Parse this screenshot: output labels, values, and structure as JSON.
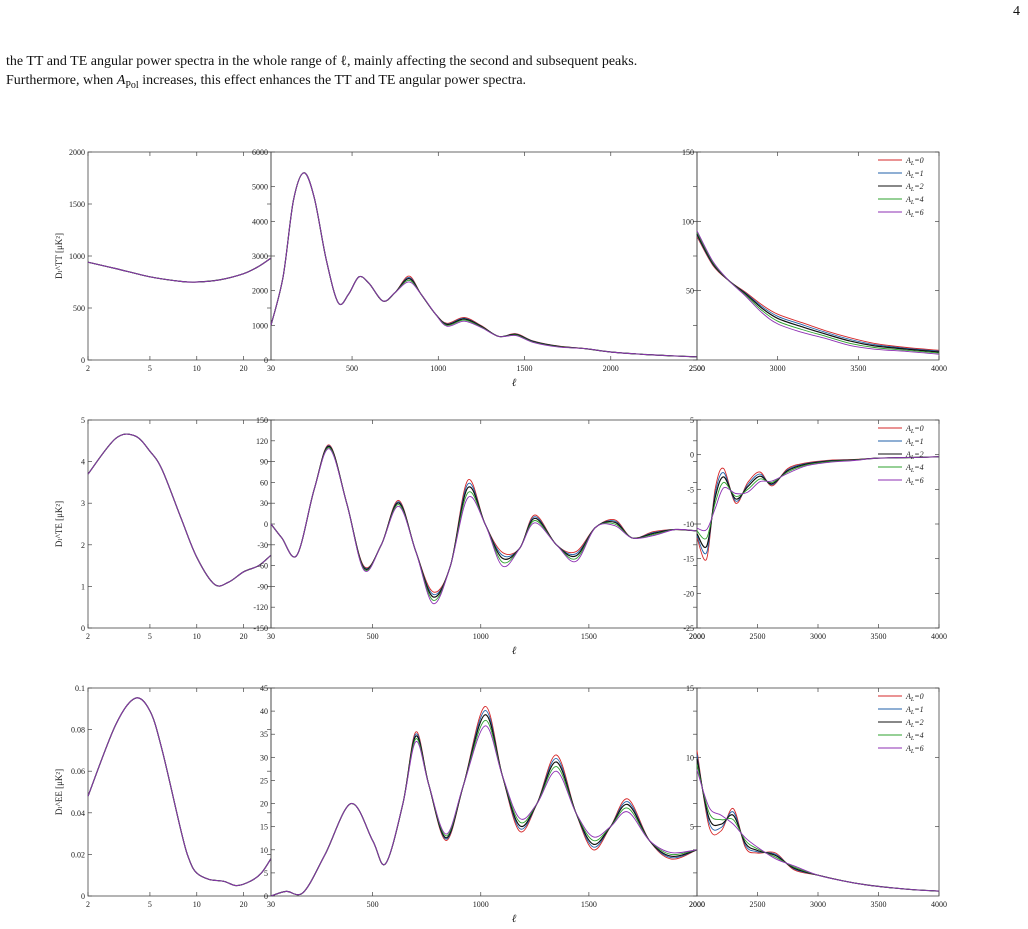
{
  "page": {
    "number": "4",
    "paragraph": {
      "line1": "the TT and TE angular power spectra in the whole range of ℓ, mainly affecting the second and subsequent peaks.",
      "line2_pre": "Furthermore, when ",
      "line2_sym": "A",
      "line2_sub": "Pol",
      "line2_post": " increases, this effect enhances the TT and TE angular power spectra."
    }
  },
  "figure": {
    "x_label": "ℓ",
    "legend": [
      "A_L=0",
      "A_L=1",
      "A_L=2",
      "A_L=4",
      "A_L=6"
    ],
    "colors": [
      "#d62728",
      "#1f5fa8",
      "#111111",
      "#2ca02c",
      "#8e2fb3"
    ]
  },
  "chart_data": [
    {
      "type": "line",
      "name": "TT",
      "ylabel": "Dₗ^TT [μK²]",
      "panels": [
        {
          "scale": "log",
          "xlim": [
            2,
            30
          ],
          "ylim": [
            0,
            2000
          ],
          "xticks": [
            2,
            5,
            10,
            20,
            30
          ],
          "yticks": [
            0,
            500,
            1000,
            1500,
            2000
          ],
          "base": [
            [
              2,
              940
            ],
            [
              3,
              880
            ],
            [
              5,
              800
            ],
            [
              8,
              755
            ],
            [
              10,
              750
            ],
            [
              14,
              770
            ],
            [
              20,
              830
            ],
            [
              25,
              900
            ],
            [
              30,
              980
            ]
          ],
          "spread": [
            0,
            0,
            0,
            0,
            0,
            0,
            0,
            0,
            0
          ]
        },
        {
          "scale": "linear",
          "xlim": [
            30,
            2500
          ],
          "ylim": [
            0,
            6000
          ],
          "xticks": [
            500,
            1000,
            1500,
            2000,
            2500
          ],
          "yticks": [
            0,
            1000,
            2000,
            3000,
            4000,
            5000,
            6000
          ],
          "base": [
            [
              30,
              1000
            ],
            [
              100,
              2400
            ],
            [
              160,
              4600
            ],
            [
              220,
              5400
            ],
            [
              280,
              4700
            ],
            [
              350,
              2900
            ],
            [
              420,
              1650
            ],
            [
              480,
              1900
            ],
            [
              540,
              2400
            ],
            [
              600,
              2200
            ],
            [
              680,
              1700
            ],
            [
              750,
              1950
            ],
            [
              830,
              2300
            ],
            [
              900,
              1900
            ],
            [
              980,
              1350
            ],
            [
              1050,
              1000
            ],
            [
              1150,
              1150
            ],
            [
              1250,
              950
            ],
            [
              1350,
              680
            ],
            [
              1450,
              720
            ],
            [
              1550,
              520
            ],
            [
              1700,
              380
            ],
            [
              1850,
              330
            ],
            [
              2000,
              230
            ],
            [
              2200,
              160
            ],
            [
              2350,
              120
            ],
            [
              2500,
              90
            ]
          ],
          "spread": [
            0,
            0,
            0,
            0,
            0,
            0,
            0,
            0,
            0,
            0,
            0,
            0,
            120,
            0,
            0,
            60,
            80,
            40,
            0,
            40,
            30,
            20,
            0,
            0,
            0,
            0,
            0
          ]
        },
        {
          "scale": "linear",
          "xlim": [
            2500,
            4000
          ],
          "ylim": [
            0,
            150
          ],
          "xticks": [
            2500,
            3000,
            3500,
            4000
          ],
          "yticks": [
            50,
            100,
            150
          ],
          "base": [
            [
              2500,
              92
            ],
            [
              2600,
              70
            ],
            [
              2700,
              57
            ],
            [
              2800,
              47
            ],
            [
              2900,
              36
            ],
            [
              3000,
              28
            ],
            [
              3150,
              22
            ],
            [
              3300,
              17
            ],
            [
              3450,
              12
            ],
            [
              3600,
              9
            ],
            [
              3800,
              7
            ],
            [
              4000,
              5
            ]
          ],
          "spread": [
            -3,
            -2,
            0,
            2,
            4,
            5,
            5,
            4,
            4,
            3,
            2,
            2
          ]
        }
      ]
    },
    {
      "type": "line",
      "name": "TE",
      "ylabel": "Dₗ^TE [μK²]",
      "panels": [
        {
          "scale": "log",
          "xlim": [
            2,
            30
          ],
          "ylim": [
            0,
            5
          ],
          "xticks": [
            2,
            5,
            10,
            20,
            30
          ],
          "yticks": [
            0,
            1,
            2,
            3,
            4,
            5
          ],
          "base": [
            [
              2,
              3.7
            ],
            [
              3,
              4.55
            ],
            [
              4,
              4.62
            ],
            [
              5,
              4.25
            ],
            [
              6,
              3.8
            ],
            [
              8,
              2.6
            ],
            [
              10,
              1.7
            ],
            [
              13,
              1.05
            ],
            [
              16,
              1.1
            ],
            [
              20,
              1.35
            ],
            [
              25,
              1.5
            ],
            [
              30,
              1.75
            ]
          ],
          "spread": [
            0,
            0,
            0,
            0,
            0,
            0,
            0,
            0,
            0,
            0,
            0,
            0
          ]
        },
        {
          "scale": "linear",
          "xlim": [
            30,
            2000
          ],
          "ylim": [
            -150,
            150
          ],
          "xticks": [
            500,
            1000,
            1500,
            2000
          ],
          "yticks": [
            -150,
            -120,
            -90,
            -60,
            -30,
            0,
            30,
            60,
            90,
            120,
            150
          ],
          "base": [
            [
              30,
              0
            ],
            [
              80,
              -20
            ],
            [
              150,
              -45
            ],
            [
              230,
              50
            ],
            [
              300,
              110
            ],
            [
              380,
              30
            ],
            [
              460,
              -65
            ],
            [
              540,
              -30
            ],
            [
              620,
              28
            ],
            [
              700,
              -40
            ],
            [
              780,
              -110
            ],
            [
              860,
              -60
            ],
            [
              940,
              45
            ],
            [
              1020,
              0
            ],
            [
              1100,
              -55
            ],
            [
              1180,
              -35
            ],
            [
              1250,
              5
            ],
            [
              1350,
              -30
            ],
            [
              1440,
              -50
            ],
            [
              1530,
              -5
            ],
            [
              1620,
              0
            ],
            [
              1700,
              -20
            ],
            [
              1800,
              -15
            ],
            [
              1900,
              -8
            ],
            [
              2000,
              -10
            ]
          ],
          "spread": [
            0,
            0,
            0,
            0,
            4,
            0,
            4,
            0,
            6,
            0,
            12,
            0,
            18,
            0,
            14,
            0,
            8,
            0,
            10,
            0,
            6,
            0,
            4,
            0,
            0
          ]
        },
        {
          "scale": "linear",
          "xlim": [
            2000,
            4000
          ],
          "ylim": [
            -25,
            5
          ],
          "xticks": [
            2000,
            2500,
            3000,
            3500,
            4000
          ],
          "yticks": [
            -25,
            -20,
            -15,
            -10,
            -5,
            0,
            5
          ],
          "base": [
            [
              2000,
              -11
            ],
            [
              2080,
              -12
            ],
            [
              2150,
              -7
            ],
            [
              2220,
              -4
            ],
            [
              2320,
              -6
            ],
            [
              2420,
              -5
            ],
            [
              2520,
              -3.5
            ],
            [
              2620,
              -4
            ],
            [
              2750,
              -2.5
            ],
            [
              2900,
              -1.5
            ],
            [
              3100,
              -1
            ],
            [
              3300,
              -0.8
            ],
            [
              3500,
              -0.5
            ],
            [
              3800,
              -0.4
            ],
            [
              4000,
              -0.3
            ]
          ],
          "spread": [
            -1,
            -3,
            2,
            2,
            -1,
            1,
            1,
            -0.5,
            0.5,
            0.3,
            0.2,
            0.1,
            0,
            0,
            0
          ]
        }
      ]
    },
    {
      "type": "line",
      "name": "EE",
      "ylabel": "Dₗ^EE [μK²]",
      "panels": [
        {
          "scale": "log",
          "xlim": [
            2,
            30
          ],
          "ylim": [
            0,
            0.1
          ],
          "xticks": [
            2,
            5,
            10,
            20,
            30
          ],
          "yticks": [
            0,
            0.02,
            0.04,
            0.06,
            0.08,
            0.1
          ],
          "base": [
            [
              2,
              0.048
            ],
            [
              3,
              0.082
            ],
            [
              4,
              0.095
            ],
            [
              5,
              0.089
            ],
            [
              6,
              0.07
            ],
            [
              8,
              0.03
            ],
            [
              9,
              0.017
            ],
            [
              10,
              0.011
            ],
            [
              12,
              0.008
            ],
            [
              15,
              0.007
            ],
            [
              18,
              0.005
            ],
            [
              22,
              0.007
            ],
            [
              26,
              0.011
            ],
            [
              30,
              0.018
            ]
          ],
          "spread": [
            0,
            0,
            0,
            0,
            0,
            0,
            0,
            0,
            0,
            0,
            0,
            0,
            0,
            0
          ]
        },
        {
          "scale": "linear",
          "xlim": [
            30,
            2000
          ],
          "ylim": [
            0,
            45
          ],
          "xticks": [
            500,
            1000,
            1500,
            2000
          ],
          "yticks": [
            0,
            5,
            10,
            15,
            20,
            25,
            30,
            35,
            40,
            45
          ],
          "base": [
            [
              30,
              0
            ],
            [
              100,
              1
            ],
            [
              180,
              0.8
            ],
            [
              280,
              9
            ],
            [
              400,
              20
            ],
            [
              500,
              12
            ],
            [
              560,
              7
            ],
            [
              640,
              20
            ],
            [
              700,
              34
            ],
            [
              760,
              24
            ],
            [
              840,
              13
            ],
            [
              920,
              24
            ],
            [
              1020,
              38
            ],
            [
              1100,
              26
            ],
            [
              1180,
              16
            ],
            [
              1260,
              20
            ],
            [
              1350,
              28
            ],
            [
              1440,
              18
            ],
            [
              1520,
              12
            ],
            [
              1600,
              15
            ],
            [
              1680,
              19
            ],
            [
              1780,
              12
            ],
            [
              1880,
              9
            ],
            [
              2000,
              10
            ]
          ],
          "spread": [
            0,
            0,
            0,
            0,
            0,
            0,
            0,
            0,
            1.5,
            0,
            -1,
            0,
            3,
            0,
            -2,
            0,
            2.5,
            0,
            -2,
            0,
            2,
            0,
            -1,
            0
          ]
        },
        {
          "scale": "linear",
          "xlim": [
            2000,
            4000
          ],
          "ylim": [
            0,
            15
          ],
          "xticks": [
            2000,
            2500,
            3000,
            3500,
            4000
          ],
          "yticks": [
            5,
            10,
            15
          ],
          "base": [
            [
              2000,
              9.5
            ],
            [
              2100,
              6
            ],
            [
              2200,
              5.5
            ],
            [
              2300,
              5.5
            ],
            [
              2400,
              4
            ],
            [
              2500,
              3.4
            ],
            [
              2650,
              2.8
            ],
            [
              2800,
              2.1
            ],
            [
              3000,
              1.5
            ],
            [
              3200,
              1.1
            ],
            [
              3400,
              0.8
            ],
            [
              3600,
              0.6
            ],
            [
              3800,
              0.45
            ],
            [
              4000,
              0.35
            ]
          ],
          "spread": [
            1,
            -1,
            -0.8,
            0.8,
            -0.5,
            -0.3,
            0.3,
            -0.2,
            0,
            0,
            0,
            0,
            0,
            0
          ]
        }
      ]
    }
  ]
}
